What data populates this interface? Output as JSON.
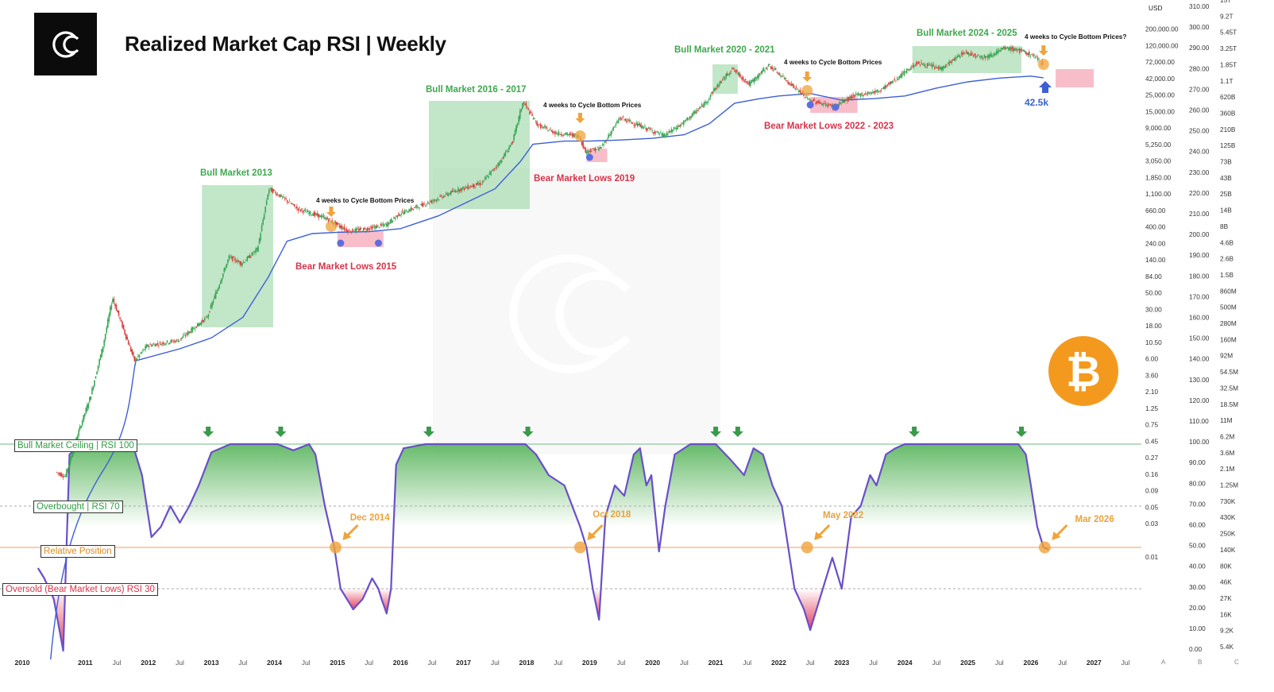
{
  "header": {
    "title": "Realized Market Cap RSI | Weekly",
    "logo_icon": "cc-logo-icon"
  },
  "colors": {
    "green_fill": "#8fd19a",
    "bear_fill": "#f4a3b3",
    "orange": "#f0a33a",
    "price_up": "#3aa655",
    "price_down": "#d9403b",
    "realized_line": "#3d5fd6",
    "rsi_line": "#6a4fc9",
    "green_text": "#3ea84f",
    "red_text": "#d6334a",
    "blue_marker": "#5b6ee1"
  },
  "reference_lines": {
    "bull_ceiling": "Bull Market Ceiling | RSI 100",
    "overbought": "Overbought | RSI 70",
    "relative_position": "Relative Position",
    "oversold": "Oversold (Bear Market Lows) RSI 30"
  },
  "annotations": {
    "bull_2013": "Bull Market 2013",
    "bull_2016": "Bull Market 2016 - 2017",
    "bull_2020": "Bull Market 2020 - 2021",
    "bull_2024": "Bull Market 2024 - 2025",
    "bear_2015": "Bear Market Lows 2015",
    "bear_2019": "Bear Market Lows 2019",
    "bear_2022": "Bear Market Lows 2022 - 2023",
    "weeks_text": "4 weeks to Cycle Bottom Prices",
    "weeks_text_q": "4 weeks to Cycle Bottom Prices?",
    "dec2014": "Dec 2014",
    "oct2018": "Oct 2018",
    "may2022": "May 2022",
    "mar2026": "Mar 2026",
    "realized_value": "42.5k",
    "bitcoin_icon": "bitcoin-icon"
  },
  "axes": {
    "usd_header": "USD",
    "usd_ticks": [
      "200,000.00",
      "120,000.00",
      "72,000.00",
      "42,000.00",
      "25,000.00",
      "15,000.00",
      "9,000.00",
      "5,250.00",
      "3,050.00",
      "1,850.00",
      "1,100.00",
      "660.00",
      "400.00",
      "240.00",
      "140.00",
      "84.00",
      "50.00",
      "30.00",
      "18.00",
      "10.50",
      "6.00",
      "3.60",
      "2.10",
      "1.25",
      "0.75",
      "0.45",
      "0.27",
      "0.16",
      "0.09",
      "0.05",
      "0.03",
      "0.01"
    ],
    "rsi_ticks": [
      "310.00",
      "300.00",
      "290.00",
      "280.00",
      "270.00",
      "260.00",
      "250.00",
      "240.00",
      "230.00",
      "220.00",
      "210.00",
      "200.00",
      "190.00",
      "180.00",
      "170.00",
      "160.00",
      "150.00",
      "140.00",
      "130.00",
      "120.00",
      "110.00",
      "100.00",
      "90.00",
      "80.00",
      "70.00",
      "60.00",
      "50.00",
      "40.00",
      "30.00",
      "20.00",
      "10.00",
      "0.00"
    ],
    "cap_ticks": [
      "15T",
      "9.2T",
      "5.45T",
      "3.25T",
      "1.85T",
      "1.1T",
      "620B",
      "360B",
      "210B",
      "125B",
      "73B",
      "43B",
      "25B",
      "14B",
      "8B",
      "4.6B",
      "2.6B",
      "1.5B",
      "860M",
      "500M",
      "280M",
      "160M",
      "92M",
      "54.5M",
      "32.5M",
      "18.5M",
      "11M",
      "6.2M",
      "3.6M",
      "2.1M",
      "1.25M",
      "730K",
      "430K",
      "250K",
      "140K",
      "80K",
      "46K",
      "27K",
      "16K",
      "9.2K",
      "5.4K"
    ],
    "bottom_letters": [
      "A",
      "B",
      "C"
    ],
    "x_ticks": [
      "2010",
      "2011",
      "Jul",
      "2012",
      "Jul",
      "2013",
      "Jul",
      "2014",
      "Jul",
      "2015",
      "Jul",
      "2016",
      "Jul",
      "2017",
      "Jul",
      "2018",
      "Jul",
      "2019",
      "Jul",
      "2020",
      "Jul",
      "2021",
      "Jul",
      "2022",
      "Jul",
      "2023",
      "Jul",
      "2024",
      "Jul",
      "2025",
      "Jul",
      "2026",
      "Jul",
      "2027",
      "Jul"
    ]
  },
  "chart_data": {
    "type": "line",
    "title": "Realized Market Cap RSI | Weekly",
    "y_scale_price": "log",
    "rsi_levels": {
      "ceiling": 100,
      "overbought": 70,
      "relative_position": 50,
      "oversold": 30
    },
    "series": [
      {
        "name": "BTC price (USD)",
        "x": [
          2010.55,
          2010.7,
          2010.9,
          2011.1,
          2011.3,
          2011.45,
          2011.8,
          2012.0,
          2012.5,
          2012.95,
          2013.3,
          2013.5,
          2013.75,
          2013.93,
          2014.1,
          2014.4,
          2014.8,
          2015.0,
          2015.2,
          2015.5,
          2015.8,
          2016.0,
          2016.5,
          2016.9,
          2017.3,
          2017.6,
          2017.8,
          2017.96,
          2018.2,
          2018.5,
          2018.85,
          2018.95,
          2019.2,
          2019.5,
          2019.8,
          2020.2,
          2020.5,
          2020.85,
          2021.0,
          2021.28,
          2021.55,
          2021.86,
          2022.1,
          2022.5,
          2022.9,
          2023.2,
          2023.6,
          2023.9,
          2024.2,
          2024.6,
          2024.95,
          2025.3,
          2025.6,
          2025.8,
          2026.05,
          2026.2
        ],
        "y": [
          0.07,
          0.06,
          0.25,
          0.9,
          5,
          25,
          3,
          5,
          6,
          13,
          100,
          80,
          130,
          1000,
          800,
          500,
          380,
          300,
          240,
          260,
          300,
          430,
          650,
          950,
          1200,
          2500,
          5000,
          19000,
          8500,
          6500,
          6000,
          3500,
          4000,
          11000,
          8500,
          6000,
          9200,
          18000,
          29000,
          58000,
          34000,
          65000,
          42000,
          20000,
          16000,
          23000,
          27000,
          42000,
          70000,
          58000,
          100000,
          85000,
          115000,
          110000,
          90000,
          70000
        ]
      },
      {
        "name": "Realized price (USD)",
        "x": [
          2011.8,
          2012.5,
          2013.0,
          2013.5,
          2013.9,
          2014.2,
          2014.6,
          2015.0,
          2015.5,
          2016.0,
          2016.6,
          2017.0,
          2017.5,
          2017.9,
          2018.1,
          2018.6,
          2019.0,
          2019.5,
          2020.0,
          2020.5,
          2020.9,
          2021.3,
          2021.7,
          2022.0,
          2022.5,
          2023.0,
          2023.5,
          2024.0,
          2024.5,
          2025.0,
          2025.5,
          2026.0,
          2026.2
        ],
        "y": [
          3,
          4.5,
          6.5,
          13,
          50,
          170,
          220,
          230,
          235,
          260,
          400,
          600,
          1000,
          2500,
          4500,
          5000,
          5000,
          5200,
          5500,
          6200,
          9000,
          18000,
          21000,
          23000,
          25000,
          20000,
          21000,
          23000,
          30000,
          37000,
          42000,
          45000,
          42500
        ]
      },
      {
        "name": "Realized Market Cap RSI",
        "x": [
          2010.25,
          2010.35,
          2010.5,
          2010.65,
          2010.75,
          2010.95,
          2011.2,
          2011.4,
          2011.6,
          2011.75,
          2011.9,
          2012.05,
          2012.2,
          2012.35,
          2012.5,
          2012.65,
          2012.8,
          2013.0,
          2013.3,
          2013.8,
          2014.05,
          2014.3,
          2014.55,
          2014.65,
          2014.8,
          2014.95,
          2015.05,
          2015.25,
          2015.4,
          2015.55,
          2015.65,
          2015.7,
          2015.78,
          2015.85,
          2015.93,
          2016.05,
          2016.4,
          2016.8,
          2017.2,
          2017.7,
          2017.98,
          2018.15,
          2018.35,
          2018.6,
          2018.85,
          2018.95,
          2019.05,
          2019.15,
          2019.25,
          2019.4,
          2019.55,
          2019.7,
          2019.8,
          2019.9,
          2019.98,
          2020.1,
          2020.2,
          2020.35,
          2020.6,
          2020.8,
          2021.0,
          2021.25,
          2021.45,
          2021.6,
          2021.75,
          2021.9,
          2022.05,
          2022.15,
          2022.25,
          2022.4,
          2022.5,
          2022.65,
          2022.85,
          2023.0,
          2023.15,
          2023.3,
          2023.45,
          2023.55,
          2023.7,
          2023.85,
          2024.0,
          2024.2,
          2024.6,
          2025.2,
          2025.8,
          2025.92,
          2026.0,
          2026.1,
          2026.2,
          2026.28
        ],
        "y": [
          40,
          35,
          25,
          0,
          95,
          100,
          100,
          100,
          100,
          100,
          85,
          55,
          60,
          70,
          62,
          70,
          80,
          96,
          100,
          100,
          100,
          97,
          100,
          95,
          70,
          50,
          30,
          20,
          25,
          35,
          30,
          25,
          18,
          30,
          90,
          98,
          100,
          100,
          100,
          100,
          100,
          95,
          85,
          80,
          60,
          50,
          30,
          15,
          65,
          80,
          75,
          95,
          98,
          80,
          85,
          48,
          70,
          95,
          100,
          100,
          100,
          92,
          85,
          98,
          95,
          80,
          70,
          50,
          30,
          20,
          10,
          25,
          45,
          30,
          65,
          70,
          85,
          80,
          95,
          98,
          100,
          100,
          100,
          100,
          100,
          95,
          80,
          60,
          50,
          49
        ]
      }
    ],
    "events": [
      {
        "label": "Dec 2014",
        "rsi": 50
      },
      {
        "label": "Oct 2018",
        "rsi": 50
      },
      {
        "label": "May 2022",
        "rsi": 50
      },
      {
        "label": "Mar 2026",
        "rsi": 50
      }
    ]
  }
}
